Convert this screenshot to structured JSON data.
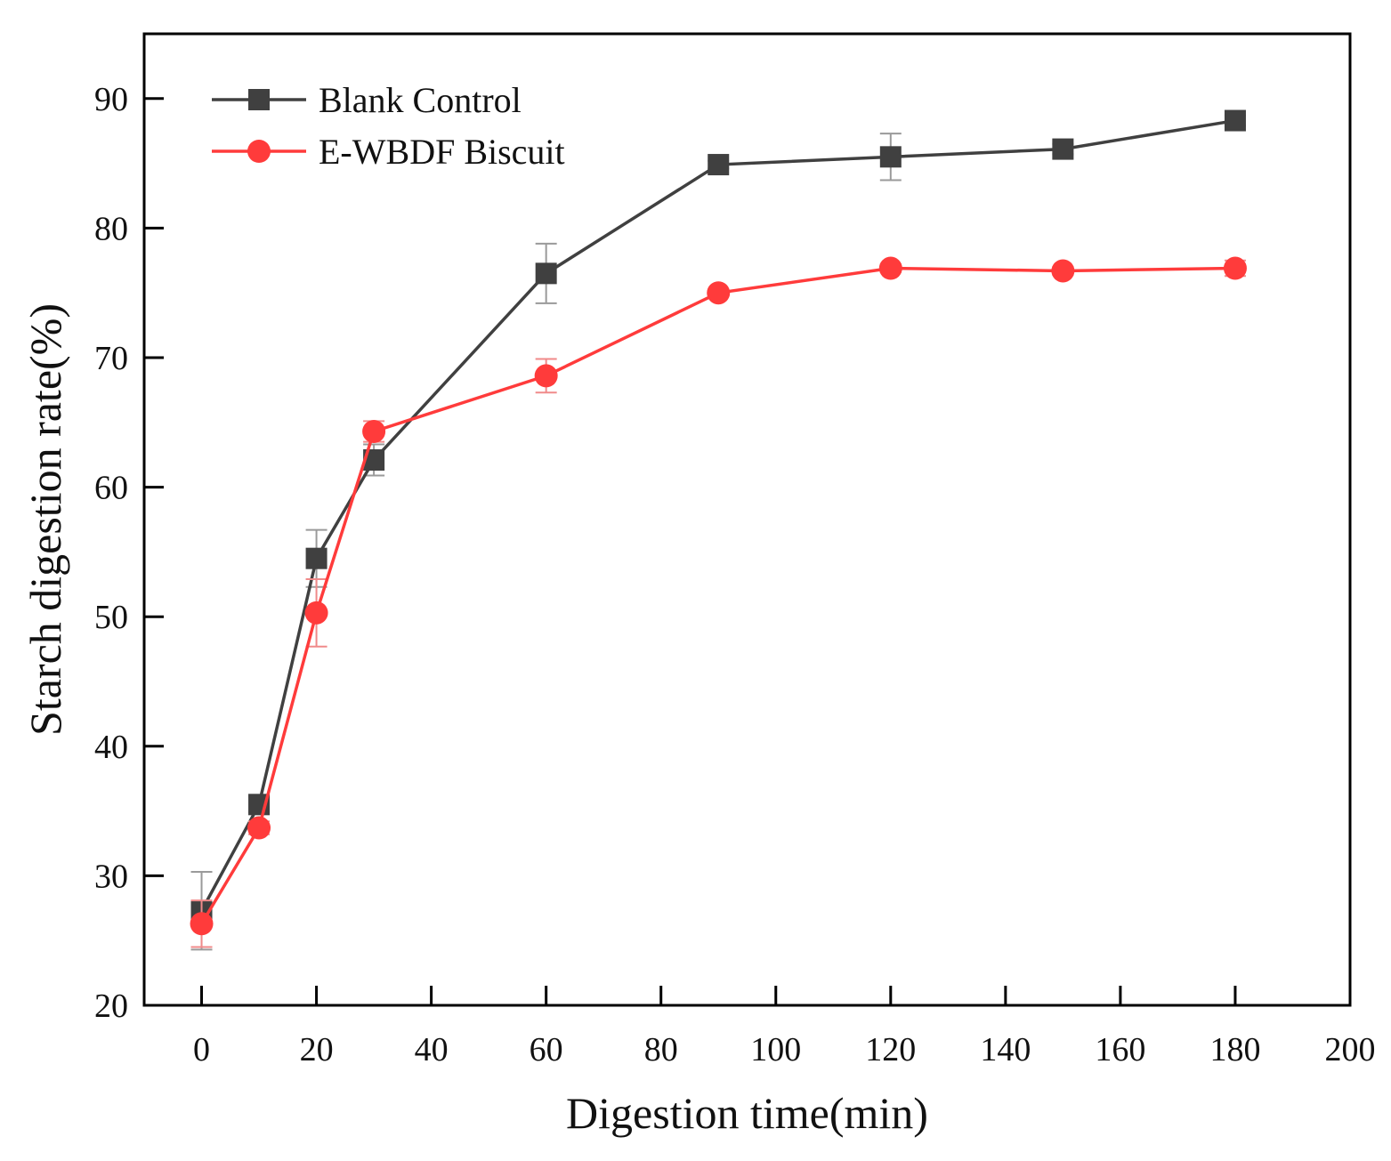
{
  "chart_data": {
    "type": "line",
    "title": "",
    "xlabel": "Digestion time(min)",
    "ylabel": "Starch digestion rate(%)",
    "xlim": [
      -10,
      200
    ],
    "ylim": [
      20,
      95
    ],
    "xticks": [
      0,
      20,
      40,
      60,
      80,
      100,
      120,
      140,
      160,
      180,
      200
    ],
    "yticks": [
      20,
      30,
      40,
      50,
      60,
      70,
      80,
      90
    ],
    "legend_position": "top-left",
    "grid": false,
    "series": [
      {
        "name": "Blank Control",
        "color": "#404040",
        "marker": "square",
        "x": [
          0,
          10,
          20,
          30,
          60,
          90,
          120,
          150,
          180
        ],
        "values": [
          27.3,
          35.5,
          54.5,
          62.1,
          76.5,
          84.9,
          85.5,
          86.1,
          88.3
        ],
        "errors": [
          3.0,
          0.6,
          2.2,
          1.2,
          2.3,
          0.3,
          1.8,
          0.4,
          0.4
        ]
      },
      {
        "name": "E-WBDF Biscuit",
        "color": "#ff3b3b",
        "marker": "circle",
        "x": [
          0,
          10,
          20,
          30,
          60,
          90,
          120,
          150,
          180
        ],
        "values": [
          26.3,
          33.7,
          50.3,
          64.3,
          68.6,
          75.0,
          76.9,
          76.7,
          76.9
        ],
        "errors": [
          1.8,
          0.5,
          2.6,
          0.8,
          1.3,
          0.2,
          0.3,
          0.3,
          0.6
        ]
      }
    ]
  }
}
